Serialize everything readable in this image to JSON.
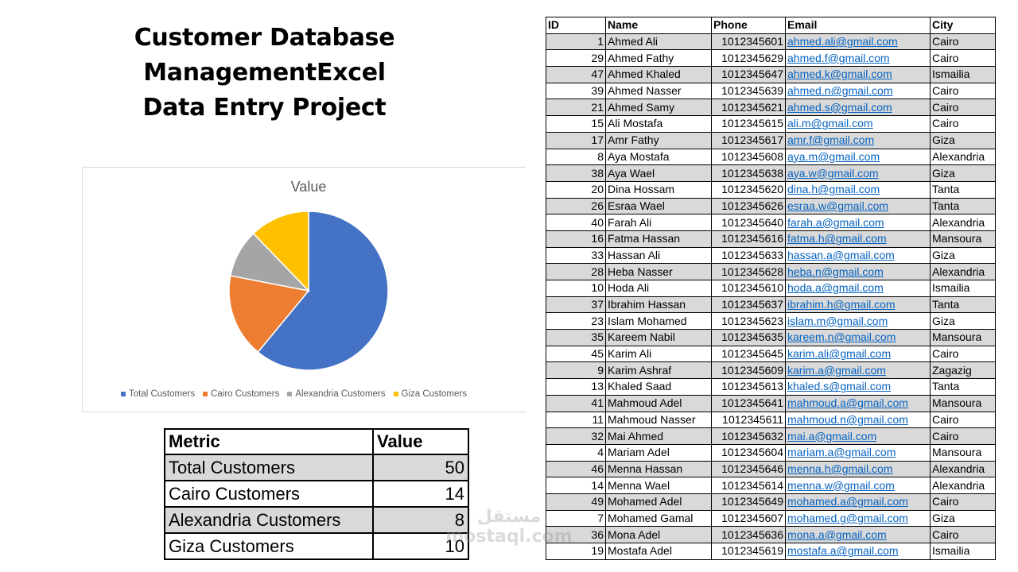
{
  "title": {
    "line1": "Customer Database ManagementExcel",
    "line2": "Data Entry Project"
  },
  "chart_data": {
    "type": "pie",
    "title": "Value",
    "categories": [
      "Total Customers",
      "Cairo Customers",
      "Alexandria Customers",
      "Giza Customers"
    ],
    "values": [
      50,
      14,
      8,
      10
    ],
    "colors": [
      "#4472c4",
      "#ed7d31",
      "#a5a5a5",
      "#ffc000"
    ],
    "legend_position": "bottom"
  },
  "metrics": {
    "headers": [
      "Metric",
      "Value"
    ],
    "rows": [
      {
        "metric": "Total Customers",
        "value": "50"
      },
      {
        "metric": "Cairo Customers",
        "value": "14"
      },
      {
        "metric": "Alexandria Customers",
        "value": "8"
      },
      {
        "metric": "Giza Customers",
        "value": "10"
      }
    ]
  },
  "customers": {
    "headers": [
      "ID",
      "Name",
      "Phone",
      "Email",
      "City"
    ],
    "rows": [
      {
        "id": "1",
        "name": "Ahmed Ali",
        "phone": "1012345601",
        "email": "ahmed.ali@gmail.com",
        "city": "Cairo"
      },
      {
        "id": "29",
        "name": "Ahmed Fathy",
        "phone": "1012345629",
        "email": "ahmed.f@gmail.com",
        "city": "Cairo"
      },
      {
        "id": "47",
        "name": "Ahmed Khaled",
        "phone": "1012345647",
        "email": "ahmed.k@gmail.com",
        "city": "Ismailia"
      },
      {
        "id": "39",
        "name": "Ahmed Nasser",
        "phone": "1012345639",
        "email": "ahmed.n@gmail.com",
        "city": "Cairo"
      },
      {
        "id": "21",
        "name": "Ahmed Samy",
        "phone": "1012345621",
        "email": "ahmed.s@gmail.com",
        "city": "Cairo"
      },
      {
        "id": "15",
        "name": "Ali Mostafa",
        "phone": "1012345615",
        "email": "ali.m@gmail.com",
        "city": "Cairo"
      },
      {
        "id": "17",
        "name": "Amr Fathy",
        "phone": "1012345617",
        "email": "amr.f@gmail.com",
        "city": "Giza"
      },
      {
        "id": "8",
        "name": "Aya Mostafa",
        "phone": "1012345608",
        "email": "aya.m@gmail.com",
        "city": "Alexandria"
      },
      {
        "id": "38",
        "name": "Aya Wael",
        "phone": "1012345638",
        "email": "aya.w@gmail.com",
        "city": "Giza"
      },
      {
        "id": "20",
        "name": "Dina Hossam",
        "phone": "1012345620",
        "email": "dina.h@gmail.com",
        "city": "Tanta"
      },
      {
        "id": "26",
        "name": "Esraa Wael",
        "phone": "1012345626",
        "email": "esraa.w@gmail.com",
        "city": "Tanta"
      },
      {
        "id": "40",
        "name": "Farah Ali",
        "phone": "1012345640",
        "email": "farah.a@gmail.com",
        "city": "Alexandria"
      },
      {
        "id": "16",
        "name": "Fatma Hassan",
        "phone": "1012345616",
        "email": "fatma.h@gmail.com",
        "city": "Mansoura"
      },
      {
        "id": "33",
        "name": "Hassan Ali",
        "phone": "1012345633",
        "email": "hassan.a@gmail.com",
        "city": "Giza"
      },
      {
        "id": "28",
        "name": "Heba Nasser",
        "phone": "1012345628",
        "email": "heba.n@gmail.com",
        "city": "Alexandria"
      },
      {
        "id": "10",
        "name": "Hoda Ali",
        "phone": "1012345610",
        "email": "hoda.a@gmail.com",
        "city": "Ismailia"
      },
      {
        "id": "37",
        "name": "Ibrahim Hassan",
        "phone": "1012345637",
        "email": "ibrahim.h@gmail.com",
        "city": "Tanta"
      },
      {
        "id": "23",
        "name": "Islam Mohamed",
        "phone": "1012345623",
        "email": "islam.m@gmail.com",
        "city": "Giza"
      },
      {
        "id": "35",
        "name": "Kareem Nabil",
        "phone": "1012345635",
        "email": "kareem.n@gmail.com",
        "city": "Mansoura"
      },
      {
        "id": "45",
        "name": "Karim Ali",
        "phone": "1012345645",
        "email": "karim.ali@gmail.com",
        "city": "Cairo"
      },
      {
        "id": "9",
        "name": "Karim Ashraf",
        "phone": "1012345609",
        "email": "karim.a@gmail.com",
        "city": "Zagazig"
      },
      {
        "id": "13",
        "name": "Khaled Saad",
        "phone": "1012345613",
        "email": "khaled.s@gmail.com",
        "city": "Tanta"
      },
      {
        "id": "41",
        "name": "Mahmoud Adel",
        "phone": "1012345641",
        "email": "mahmoud.a@gmail.com",
        "city": "Mansoura"
      },
      {
        "id": "11",
        "name": "Mahmoud Nasser",
        "phone": "1012345611",
        "email": "mahmoud.n@gmail.com",
        "city": "Cairo"
      },
      {
        "id": "32",
        "name": "Mai Ahmed",
        "phone": "1012345632",
        "email": "mai.a@gmail.com",
        "city": "Cairo"
      },
      {
        "id": "4",
        "name": "Mariam Adel",
        "phone": "1012345604",
        "email": "mariam.a@gmail.com",
        "city": "Mansoura"
      },
      {
        "id": "46",
        "name": "Menna Hassan",
        "phone": "1012345646",
        "email": "menna.h@gmail.com",
        "city": "Alexandria"
      },
      {
        "id": "14",
        "name": "Menna Wael",
        "phone": "1012345614",
        "email": "menna.w@gmail.com",
        "city": "Alexandria"
      },
      {
        "id": "49",
        "name": "Mohamed Adel",
        "phone": "1012345649",
        "email": "mohamed.a@gmail.com",
        "city": "Cairo"
      },
      {
        "id": "7",
        "name": "Mohamed Gamal",
        "phone": "1012345607",
        "email": "mohamed.g@gmail.com",
        "city": "Giza"
      },
      {
        "id": "36",
        "name": "Mona Adel",
        "phone": "1012345636",
        "email": "mona.a@gmail.com",
        "city": "Cairo"
      },
      {
        "id": "19",
        "name": "Mostafa Adel",
        "phone": "1012345619",
        "email": "mostafa.a@gmail.com",
        "city": "Ismailia"
      }
    ]
  },
  "watermark": {
    "line1": "مستقل",
    "line2": "mostaql.com"
  }
}
